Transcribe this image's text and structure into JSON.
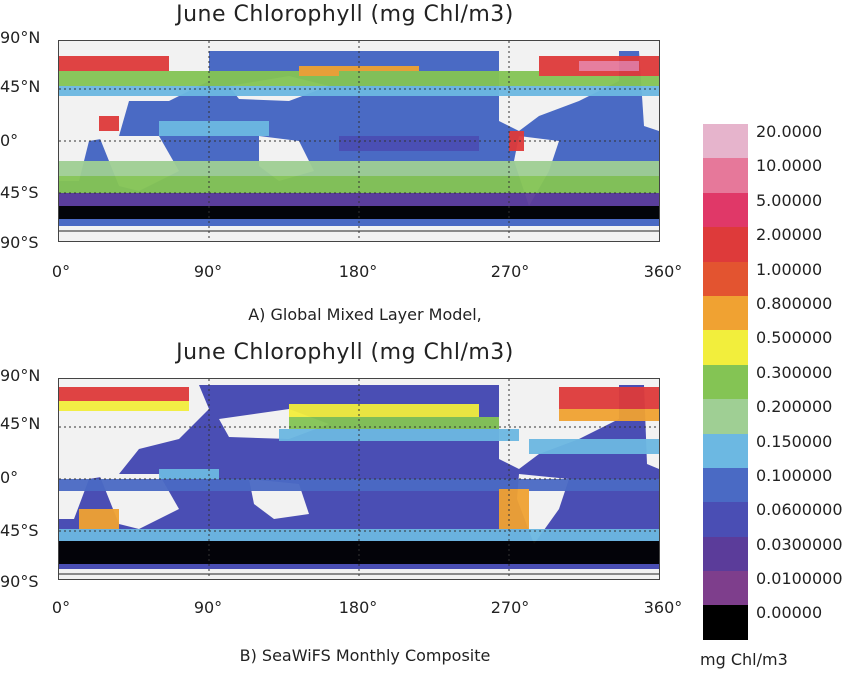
{
  "panel_a": {
    "title": "June Chlorophyll (mg Chl/m3)",
    "caption": "A) Global Mixed Layer Model,",
    "lat_labels": [
      "90°N",
      "45°N",
      "0°",
      "45°S",
      "90°S"
    ],
    "lon_labels": [
      "0°",
      "90°",
      "180°",
      "270°",
      "360°"
    ]
  },
  "panel_b": {
    "title": "June Chlorophyll (mg Chl/m3)",
    "caption": "B) SeaWiFS Monthly Composite",
    "lat_labels": [
      "90°N",
      "45°N",
      "0°",
      "45°S",
      "90°S"
    ],
    "lon_labels": [
      "0°",
      "90°",
      "180°",
      "270°",
      "360°"
    ]
  },
  "legend": {
    "units": "mg Chl/m3",
    "items": [
      {
        "label": "20.0000",
        "color": "#e6b4cc"
      },
      {
        "label": "10.0000",
        "color": "#e6789a"
      },
      {
        "label": "5.00000",
        "color": "#e03868"
      },
      {
        "label": "2.00000",
        "color": "#de3a3a"
      },
      {
        "label": "1.00000",
        "color": "#e35430"
      },
      {
        "label": "0.800000",
        "color": "#f0a232"
      },
      {
        "label": "0.500000",
        "color": "#f2ee3c"
      },
      {
        "label": "0.300000",
        "color": "#84c454"
      },
      {
        "label": "0.200000",
        "color": "#9fcf94"
      },
      {
        "label": "0.150000",
        "color": "#6cb8e2"
      },
      {
        "label": "0.100000",
        "color": "#4a6ac4"
      },
      {
        "label": "0.0600000",
        "color": "#4a4eb4"
      },
      {
        "label": "0.0300000",
        "color": "#5b3c9a"
      },
      {
        "label": "0.0100000",
        "color": "#7e3e8c"
      },
      {
        "label": "0.00000",
        "color": "#000000"
      }
    ]
  },
  "colors": {
    "land": "#f2f2f2",
    "grid": "#333333"
  }
}
